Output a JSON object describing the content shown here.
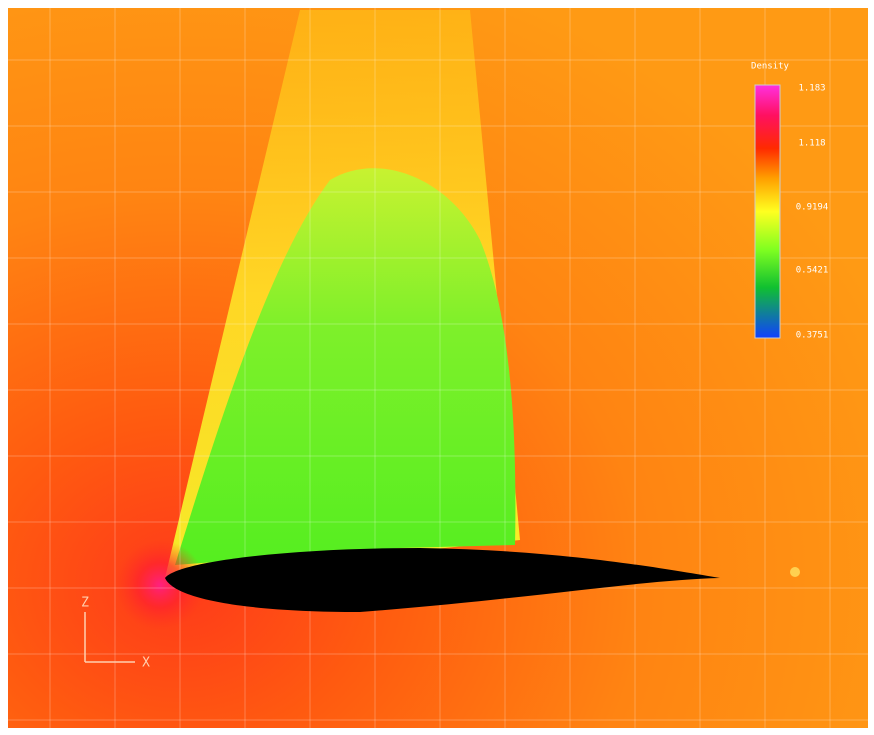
{
  "legend": {
    "title": "Density",
    "labels": [
      "1.183",
      "1.118",
      "0.9194",
      "0.5421",
      "0.3751"
    ]
  },
  "axes": {
    "vertical": "Z",
    "horizontal": "X"
  }
}
